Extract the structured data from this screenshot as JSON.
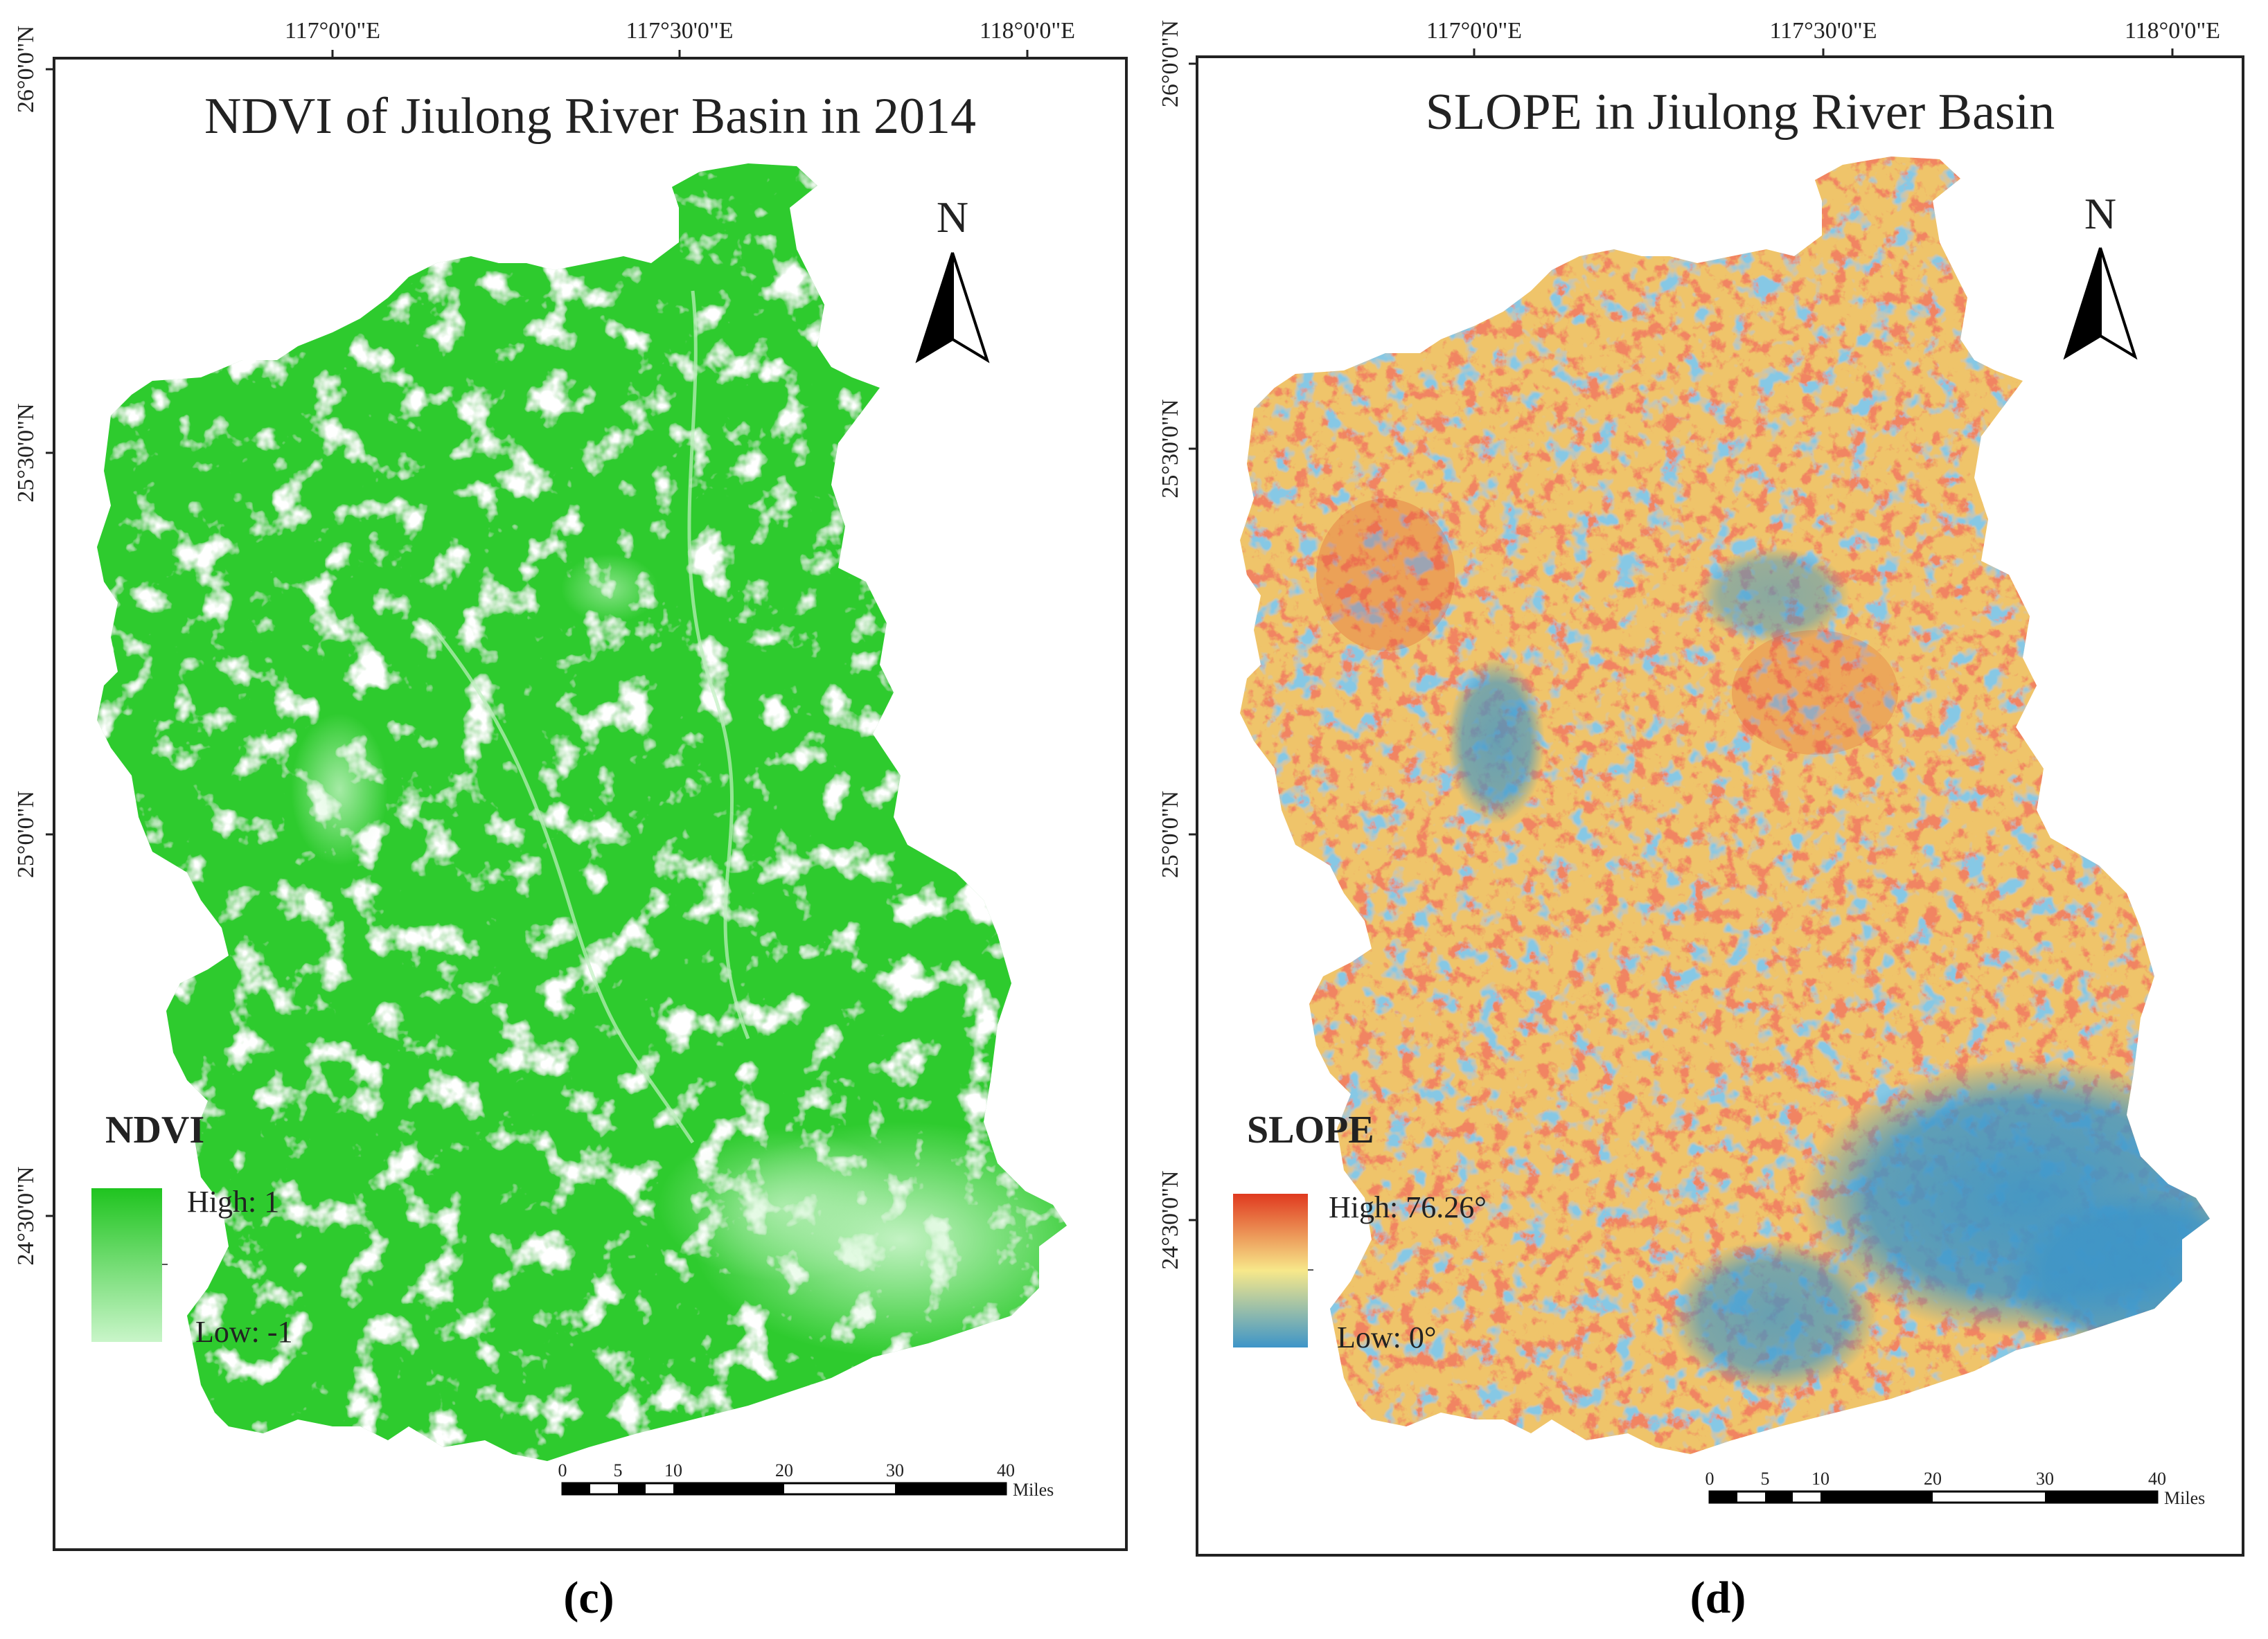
{
  "panels": [
    {
      "id": "c",
      "title": "NDVI of Jiulong River Basin in 2014",
      "x_ticks": [
        "117°0'0\"E",
        "117°30'0\"E",
        "118°0'0\"E"
      ],
      "y_ticks": [
        "26°0'0\"N",
        "25°30'0\"N",
        "25°0'0\"N",
        "24°30'0\"N"
      ],
      "north_label": "N",
      "legend": {
        "title": "NDVI",
        "high_label": "High: 1",
        "low_label": "Low: -1",
        "colors": [
          "#1fc41f",
          "#c9f5c9"
        ]
      },
      "scale_bar": {
        "ticks": [
          "0",
          "5",
          "10",
          "20",
          "30",
          "40"
        ],
        "unit": "Miles"
      },
      "caption": "(c)"
    },
    {
      "id": "d",
      "title": "SLOPE in Jiulong River Basin",
      "x_ticks": [
        "117°0'0\"E",
        "117°30'0\"E",
        "118°0'0\"E"
      ],
      "y_ticks": [
        "26°0'0\"N",
        "25°30'0\"N",
        "25°0'0\"N",
        "24°30'0\"N"
      ],
      "north_label": "N",
      "legend": {
        "title": "SLOPE",
        "high_label": "High: 76.26°",
        "low_label": "Low: 0°",
        "colors": [
          "#e0391f",
          "#f7e88a",
          "#3d95c8"
        ]
      },
      "scale_bar": {
        "ticks": [
          "0",
          "5",
          "10",
          "20",
          "30",
          "40"
        ],
        "unit": "Miles"
      },
      "caption": "(d)"
    }
  ]
}
